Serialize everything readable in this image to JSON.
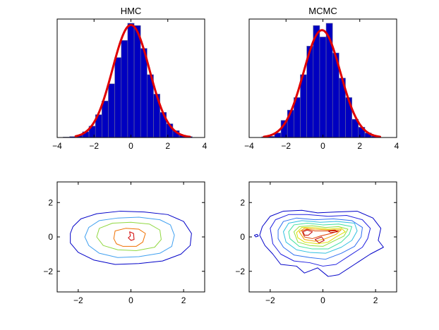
{
  "figure_bg": "#ffffff",
  "chart_data": [
    {
      "id": "hmc-hist",
      "type": "bar",
      "title": "HMC",
      "xlim": [
        -4,
        4
      ],
      "xticks": [
        -4,
        -2,
        0,
        2,
        4
      ],
      "yticks": [],
      "bar_color": "#0000c0",
      "bar_edge": "#6b6b9a",
      "bin_width": 0.35,
      "bins": [
        [
          -3.5,
          0.004
        ],
        [
          -3.15,
          0.008
        ],
        [
          -2.8,
          0.02
        ],
        [
          -2.45,
          0.05
        ],
        [
          -2.1,
          0.1
        ],
        [
          -1.75,
          0.2
        ],
        [
          -1.4,
          0.32
        ],
        [
          -1.05,
          0.47
        ],
        [
          -0.7,
          0.7
        ],
        [
          -0.35,
          0.85
        ],
        [
          0.0,
          1.0
        ],
        [
          0.35,
          0.98
        ],
        [
          0.7,
          0.78
        ],
        [
          1.05,
          0.55
        ],
        [
          1.4,
          0.38
        ],
        [
          1.75,
          0.22
        ],
        [
          2.1,
          0.12
        ],
        [
          2.45,
          0.06
        ],
        [
          2.8,
          0.02
        ],
        [
          3.15,
          0.008
        ]
      ],
      "fit": {
        "type": "normal",
        "mean": 0.0,
        "sd": 1.0,
        "range": [
          -3.0,
          3.2
        ],
        "peak": 0.985,
        "color": "#e00000"
      }
    },
    {
      "id": "mcmc-hist",
      "type": "bar",
      "title": "MCMC",
      "xlim": [
        -4,
        4
      ],
      "xticks": [
        -4,
        -2,
        0,
        2,
        4
      ],
      "yticks": [],
      "bar_color": "#0000c0",
      "bar_edge": "#6b6b9a",
      "bin_width": 0.35,
      "bins": [
        [
          -3.15,
          0.006
        ],
        [
          -2.8,
          0.01
        ],
        [
          -2.45,
          0.04
        ],
        [
          -2.1,
          0.15
        ],
        [
          -1.75,
          0.24
        ],
        [
          -1.4,
          0.35
        ],
        [
          -1.05,
          0.55
        ],
        [
          -0.7,
          0.8
        ],
        [
          -0.35,
          0.98
        ],
        [
          0.0,
          0.88
        ],
        [
          0.35,
          1.0
        ],
        [
          0.7,
          0.74
        ],
        [
          1.05,
          0.52
        ],
        [
          1.4,
          0.35
        ],
        [
          1.75,
          0.16
        ],
        [
          2.1,
          0.09
        ],
        [
          2.45,
          0.04
        ],
        [
          2.8,
          0.012
        ]
      ],
      "fit": {
        "type": "normal",
        "mean": -0.05,
        "sd": 1.0,
        "range": [
          -3.2,
          3.1
        ],
        "peak": 0.94,
        "color": "#e00000"
      }
    },
    {
      "id": "hmc-contour",
      "type": "contour",
      "xlim": [
        -2.8,
        2.8
      ],
      "ylim": [
        -3.2,
        3.2
      ],
      "xticks": [
        -2,
        0,
        2
      ],
      "yticks": [
        -2,
        0,
        2
      ],
      "levels": [
        {
          "color": "#0000c8",
          "points": [
            [
              -2.3,
              0.2
            ],
            [
              -2.2,
              0.6
            ],
            [
              -1.9,
              1.05
            ],
            [
              -1.3,
              1.35
            ],
            [
              -0.4,
              1.5
            ],
            [
              0.5,
              1.45
            ],
            [
              1.4,
              1.3
            ],
            [
              2.0,
              0.9
            ],
            [
              2.3,
              0.2
            ],
            [
              2.25,
              -0.5
            ],
            [
              1.9,
              -1.0
            ],
            [
              1.2,
              -1.4
            ],
            [
              0.3,
              -1.55
            ],
            [
              -0.6,
              -1.6
            ],
            [
              -1.4,
              -1.35
            ],
            [
              -2.0,
              -0.9
            ],
            [
              -2.3,
              -0.35
            ]
          ]
        },
        {
          "color": "#40a0f0",
          "points": [
            [
              -1.75,
              0.0
            ],
            [
              -1.6,
              0.55
            ],
            [
              -1.2,
              0.95
            ],
            [
              -0.5,
              1.1
            ],
            [
              0.3,
              1.15
            ],
            [
              1.1,
              1.0
            ],
            [
              1.5,
              0.7
            ],
            [
              1.65,
              0.1
            ],
            [
              1.55,
              -0.55
            ],
            [
              1.1,
              -0.95
            ],
            [
              0.3,
              -1.15
            ],
            [
              -0.5,
              -1.2
            ],
            [
              -1.2,
              -0.95
            ],
            [
              -1.6,
              -0.5
            ]
          ]
        },
        {
          "color": "#90d840",
          "points": [
            [
              -1.3,
              0.0
            ],
            [
              -1.2,
              0.5
            ],
            [
              -0.7,
              0.8
            ],
            [
              0.0,
              0.85
            ],
            [
              0.7,
              0.75
            ],
            [
              1.1,
              0.4
            ],
            [
              1.15,
              -0.15
            ],
            [
              0.9,
              -0.6
            ],
            [
              0.2,
              -0.8
            ],
            [
              -0.5,
              -0.75
            ],
            [
              -1.05,
              -0.5
            ]
          ]
        },
        {
          "color": "#f07000",
          "points": [
            [
              -0.65,
              -0.1
            ],
            [
              -0.6,
              0.35
            ],
            [
              -0.2,
              0.5
            ],
            [
              0.3,
              0.45
            ],
            [
              0.55,
              0.2
            ],
            [
              0.45,
              -0.3
            ],
            [
              0.2,
              -0.55
            ],
            [
              -0.3,
              -0.55
            ],
            [
              -0.55,
              -0.4
            ]
          ]
        },
        {
          "color": "#d00000",
          "points": [
            [
              -0.05,
              0.3
            ],
            [
              0.1,
              0.2
            ],
            [
              0.12,
              -0.15
            ],
            [
              0.0,
              -0.2
            ],
            [
              -0.1,
              -0.05
            ],
            [
              -0.02,
              0.05
            ]
          ]
        }
      ]
    },
    {
      "id": "mcmc-contour",
      "type": "contour",
      "xlim": [
        -2.8,
        2.8
      ],
      "ylim": [
        -3.2,
        3.2
      ],
      "xticks": [
        -2,
        0,
        2
      ],
      "yticks": [
        -2,
        0,
        2
      ],
      "levels": [
        {
          "color": "#0000c8",
          "points": [
            [
              -2.3,
              0.6
            ],
            [
              -2.0,
              1.2
            ],
            [
              -1.5,
              1.5
            ],
            [
              -0.8,
              1.55
            ],
            [
              -0.2,
              1.4
            ],
            [
              0.5,
              1.45
            ],
            [
              1.3,
              1.5
            ],
            [
              1.9,
              1.1
            ],
            [
              2.2,
              0.5
            ],
            [
              2.1,
              -0.2
            ],
            [
              2.3,
              -0.6
            ],
            [
              1.8,
              -1.0
            ],
            [
              1.2,
              -1.6
            ],
            [
              0.6,
              -2.2
            ],
            [
              0.2,
              -2.3
            ],
            [
              -0.2,
              -1.8
            ],
            [
              -0.7,
              -2.1
            ],
            [
              -1.0,
              -1.7
            ],
            [
              -1.6,
              -1.6
            ],
            [
              -1.9,
              -1.0
            ],
            [
              -2.2,
              -0.5
            ],
            [
              -2.4,
              0.1
            ]
          ]
        },
        {
          "color": "#2020e0",
          "points": [
            [
              -2.0,
              0.5
            ],
            [
              -1.8,
              1.0
            ],
            [
              -1.3,
              1.3
            ],
            [
              -0.6,
              1.3
            ],
            [
              0.2,
              1.2
            ],
            [
              0.9,
              1.25
            ],
            [
              1.5,
              1.0
            ],
            [
              1.8,
              0.5
            ],
            [
              1.7,
              -0.1
            ],
            [
              1.5,
              -0.6
            ],
            [
              1.0,
              -1.1
            ],
            [
              0.5,
              -1.6
            ],
            [
              0.0,
              -1.7
            ],
            [
              -0.5,
              -1.5
            ],
            [
              -1.1,
              -1.4
            ],
            [
              -1.6,
              -1.0
            ],
            [
              -1.9,
              -0.4
            ]
          ]
        },
        {
          "color": "#3070f0",
          "points": [
            [
              -1.7,
              0.4
            ],
            [
              -1.5,
              0.9
            ],
            [
              -1.0,
              1.1
            ],
            [
              -0.3,
              1.0
            ],
            [
              0.4,
              1.05
            ],
            [
              1.1,
              0.95
            ],
            [
              1.5,
              0.55
            ],
            [
              1.45,
              0.0
            ],
            [
              1.2,
              -0.55
            ],
            [
              0.7,
              -0.95
            ],
            [
              0.1,
              -1.3
            ],
            [
              -0.5,
              -1.2
            ],
            [
              -1.1,
              -1.05
            ],
            [
              -1.5,
              -0.6
            ],
            [
              -1.7,
              -0.1
            ]
          ]
        },
        {
          "color": "#30c0e0",
          "points": [
            [
              -1.5,
              0.3
            ],
            [
              -1.3,
              0.8
            ],
            [
              -0.8,
              0.95
            ],
            [
              -0.1,
              0.85
            ],
            [
              0.5,
              0.9
            ],
            [
              1.2,
              0.8
            ],
            [
              1.3,
              0.35
            ],
            [
              1.1,
              -0.2
            ],
            [
              0.7,
              -0.6
            ],
            [
              0.1,
              -0.95
            ],
            [
              -0.5,
              -0.9
            ],
            [
              -1.0,
              -0.75
            ],
            [
              -1.4,
              -0.3
            ]
          ]
        },
        {
          "color": "#40e0a0",
          "points": [
            [
              -1.3,
              0.3
            ],
            [
              -1.1,
              0.7
            ],
            [
              -0.6,
              0.8
            ],
            [
              0.0,
              0.7
            ],
            [
              0.6,
              0.75
            ],
            [
              1.1,
              0.6
            ],
            [
              1.0,
              0.15
            ],
            [
              0.7,
              -0.3
            ],
            [
              0.2,
              -0.7
            ],
            [
              -0.4,
              -0.7
            ],
            [
              -0.9,
              -0.55
            ],
            [
              -1.25,
              -0.1
            ]
          ]
        },
        {
          "color": "#90e040",
          "points": [
            [
              -1.1,
              0.3
            ],
            [
              -0.9,
              0.6
            ],
            [
              -0.4,
              0.65
            ],
            [
              0.1,
              0.55
            ],
            [
              0.6,
              0.6
            ],
            [
              0.95,
              0.45
            ],
            [
              0.8,
              0.05
            ],
            [
              0.4,
              -0.25
            ],
            [
              0.0,
              -0.55
            ],
            [
              -0.5,
              -0.5
            ],
            [
              -0.95,
              -0.3
            ]
          ]
        },
        {
          "color": "#e0e000",
          "points": [
            [
              -1.0,
              0.25
            ],
            [
              -0.8,
              0.55
            ],
            [
              -0.4,
              0.55
            ],
            [
              0.2,
              0.45
            ],
            [
              0.7,
              0.5
            ],
            [
              0.85,
              0.3
            ],
            [
              0.5,
              0.0
            ],
            [
              0.2,
              -0.3
            ],
            [
              -0.2,
              -0.4
            ],
            [
              -0.7,
              -0.3
            ],
            [
              -0.95,
              -0.05
            ]
          ]
        },
        {
          "color": "#f0a000",
          "points": [
            [
              -0.9,
              0.3
            ],
            [
              -0.7,
              0.5
            ],
            [
              -0.3,
              0.45
            ],
            [
              0.3,
              0.4
            ],
            [
              0.7,
              0.42
            ],
            [
              0.5,
              0.15
            ],
            [
              0.1,
              -0.1
            ],
            [
              -0.3,
              -0.25
            ],
            [
              -0.7,
              -0.15
            ]
          ]
        },
        {
          "color": "#e04000",
          "points": [
            [
              -0.8,
              0.35
            ],
            [
              -0.6,
              0.45
            ],
            [
              -0.3,
              0.35
            ],
            [
              0.3,
              0.35
            ],
            [
              0.6,
              0.35
            ],
            [
              0.3,
              0.2
            ],
            [
              -0.1,
              0.05
            ],
            [
              -0.4,
              -0.1
            ],
            [
              -0.7,
              0.0
            ]
          ]
        },
        {
          "color": "#c00000",
          "points": [
            [
              -0.75,
              0.3
            ],
            [
              -0.6,
              0.4
            ],
            [
              -0.4,
              0.3
            ],
            [
              -0.55,
              0.1
            ],
            [
              -0.7,
              0.1
            ]
          ]
        },
        {
          "color": "#c00000",
          "points": [
            [
              0.2,
              0.35
            ],
            [
              0.45,
              0.4
            ],
            [
              0.55,
              0.3
            ],
            [
              0.3,
              0.25
            ]
          ]
        },
        {
          "color": "#c00000",
          "points": [
            [
              -0.3,
              -0.15
            ],
            [
              -0.05,
              0.0
            ],
            [
              0.05,
              -0.2
            ],
            [
              -0.15,
              -0.35
            ]
          ]
        },
        {
          "color": "#0000c8",
          "points": [
            [
              -2.6,
              0.1
            ],
            [
              -2.5,
              0.15
            ],
            [
              -2.45,
              0.05
            ],
            [
              -2.55,
              0.0
            ]
          ]
        }
      ]
    }
  ]
}
